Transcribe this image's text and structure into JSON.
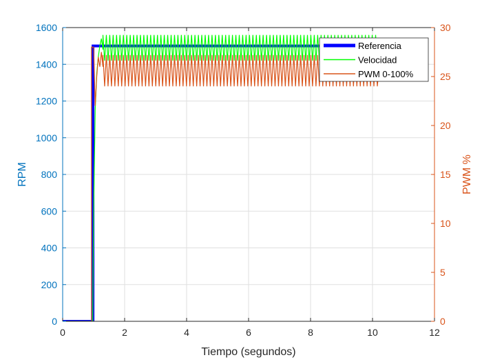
{
  "chart_data": {
    "type": "line",
    "xlabel": "Tiempo (segundos)",
    "ylabel_left": "RPM",
    "ylabel_right": "PWM %",
    "xlim": [
      0,
      12
    ],
    "ylim_left": [
      0,
      1600
    ],
    "ylim_right": [
      0,
      30
    ],
    "x_ticks": [
      0,
      2,
      4,
      6,
      8,
      10,
      12
    ],
    "y_ticks_left": [
      0,
      200,
      400,
      600,
      800,
      1000,
      1200,
      1400,
      1600
    ],
    "y_ticks_right": [
      0,
      5,
      10,
      15,
      20,
      25,
      30
    ],
    "grid": true,
    "legend_position": "top-right",
    "series": [
      {
        "name": "Referencia",
        "axis": "left",
        "color": "#0000FF",
        "x": [
          0,
          0.98,
          0.98,
          10.2
        ],
        "y": [
          0,
          0,
          1500,
          1500
        ]
      },
      {
        "name": "Velocidad",
        "axis": "left",
        "color": "#00FF00",
        "x": [
          0,
          0.97,
          1.0,
          1.05,
          1.1,
          1.15,
          1.2,
          1.25,
          1.3,
          10.2
        ],
        "y": [
          0,
          0,
          600,
          1150,
          1350,
          1440,
          1500,
          1540,
          1480,
          1500
        ],
        "oscillation": {
          "x_start": 1.3,
          "x_end": 10.2,
          "low": 1420,
          "high": 1560,
          "period_s": 0.11
        }
      },
      {
        "name": "PWM 0-100%",
        "axis": "right",
        "color": "#D95319",
        "x": [
          0,
          0.93,
          0.93,
          1.0,
          1.05,
          1.1,
          1.15,
          1.2,
          1.25,
          1.3,
          10.2
        ],
        "y": [
          0,
          0,
          28,
          28,
          22,
          25,
          27,
          26,
          27.5,
          26,
          25.5
        ],
        "oscillation": {
          "x_start": 1.3,
          "x_end": 10.2,
          "low": 24,
          "high": 27.2,
          "period_s": 0.11
        }
      }
    ]
  }
}
